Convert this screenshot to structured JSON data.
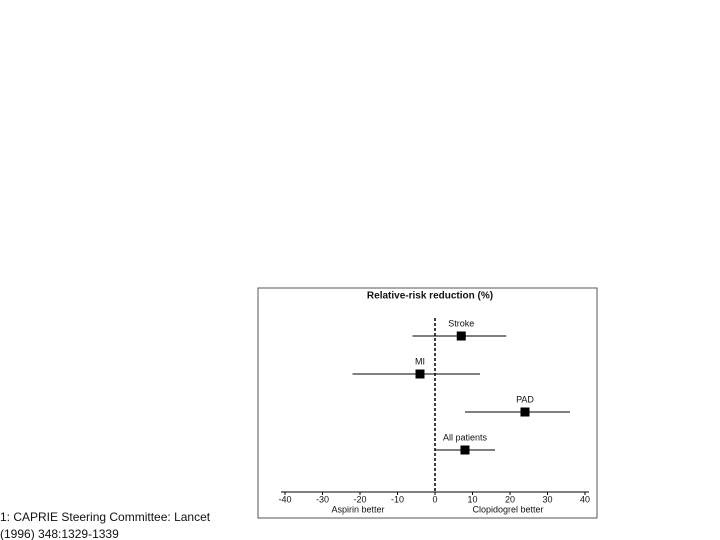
{
  "chart_data": {
    "type": "forest",
    "title": "Relative-risk reduction (%)",
    "categories": [
      "Stroke",
      "MI",
      "PAD",
      "All patients"
    ],
    "values": [
      7,
      -4,
      24,
      8
    ],
    "lower": [
      -6,
      -22,
      8,
      0
    ],
    "upper": [
      19,
      12,
      36,
      16
    ],
    "color": "#000000",
    "xlim": [
      -40,
      40
    ],
    "xticks": [
      -40,
      -30,
      -20,
      -10,
      0,
      10,
      20,
      30,
      40
    ],
    "annotations": [
      "Aspirin better",
      "Clopidogrel better"
    ]
  },
  "citation": [
    "1: CAPRIE Steering Committee: Lancet",
    "(1996) 348:1329-1339"
  ]
}
